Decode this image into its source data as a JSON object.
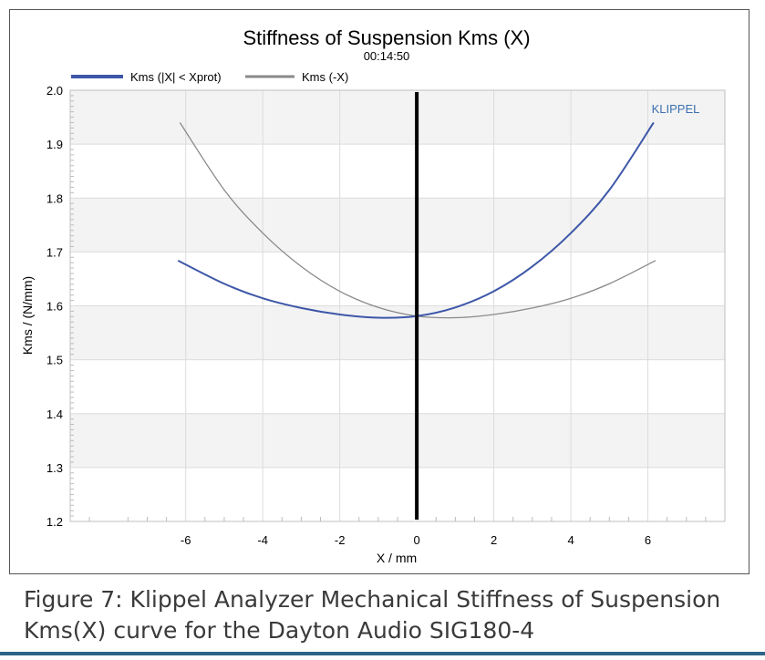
{
  "chart_data": {
    "type": "line",
    "title": "Stiffness of Suspension Kms (X)",
    "subtitle": "00:14:50",
    "xlabel": "X / mm",
    "ylabel": "Kms / (N/mm)",
    "xlim": [
      -9,
      8
    ],
    "ylim": [
      1.2,
      2.0
    ],
    "x_ticks": [
      "-6",
      "-4",
      "-2",
      "0",
      "2",
      "4",
      "6"
    ],
    "y_ticks": [
      "1.2",
      "1.3",
      "1.4",
      "1.5",
      "1.6",
      "1.7",
      "1.8",
      "1.9",
      "2.0"
    ],
    "watermark": "KLIPPEL",
    "marker_line_x": 0,
    "series": [
      {
        "name": "Kms (|X| < Xprot)",
        "color": "#3d57a8",
        "x": [
          -6.2,
          -5,
          -4,
          -3,
          -2,
          -1,
          0,
          1,
          2,
          3,
          4,
          5,
          6.15
        ],
        "y": [
          1.684,
          1.641,
          1.614,
          1.596,
          1.584,
          1.578,
          1.581,
          1.597,
          1.627,
          1.673,
          1.735,
          1.815,
          1.94
        ]
      },
      {
        "name": "Kms (-X)",
        "color": "#8a8a8a",
        "x": [
          -6.15,
          -5,
          -4,
          -3,
          -2,
          -1,
          0,
          1,
          2,
          3,
          4,
          5,
          6.2
        ],
        "y": [
          1.94,
          1.815,
          1.735,
          1.673,
          1.627,
          1.597,
          1.581,
          1.578,
          1.584,
          1.596,
          1.614,
          1.641,
          1.684
        ]
      }
    ]
  },
  "caption": "Figure 7: Klippel Analyzer Mechanical Stiffness of Suspension Kms(X) curve for the Dayton Audio SIG180-4"
}
